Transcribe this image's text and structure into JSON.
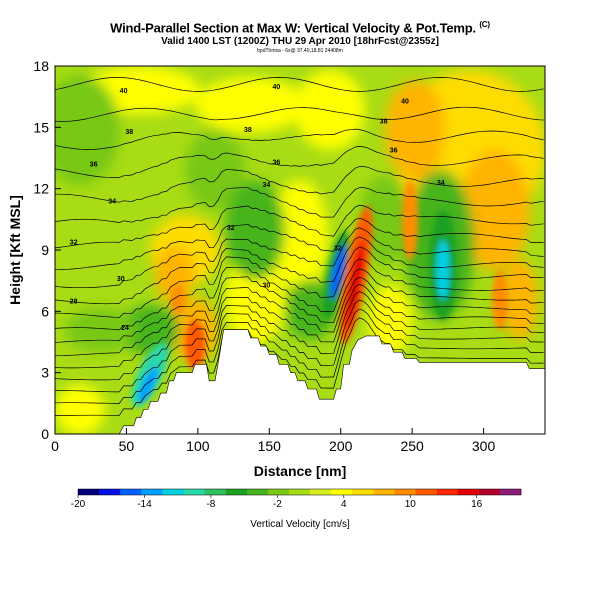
{
  "header": {
    "title": "Wind-Parallel Section at Max W: Vertical Velocity & Pot.Temp.",
    "title_mark": "(C)",
    "subtitle": "Valid 1400 LST (1200Z) THU 29 Apr 2010 [18hrFcst@2355z]",
    "credit": "bpdThmsa - 6x@ 37.40,18.81 24408m"
  },
  "chart_data": {
    "type": "heatmap",
    "xlabel": "Distance [nm]",
    "ylabel": "Height [Kft MSL]",
    "xlim": [
      0,
      343
    ],
    "ylim": [
      0,
      18
    ],
    "xticks": [
      0,
      50,
      100,
      150,
      200,
      250,
      300
    ],
    "yticks": [
      0,
      3,
      6,
      9,
      12,
      15,
      18
    ],
    "grid": false,
    "field": "Vertical Velocity [cm/s] (filled) with Potential Temperature contours",
    "terrain_profile": [
      [
        0,
        0
      ],
      [
        45,
        0
      ],
      [
        48,
        0.4
      ],
      [
        55,
        0.4
      ],
      [
        57,
        0.8
      ],
      [
        60,
        0.8
      ],
      [
        62,
        1.2
      ],
      [
        65,
        1.2
      ],
      [
        67,
        1.6
      ],
      [
        72,
        1.6
      ],
      [
        74,
        2
      ],
      [
        78,
        2
      ],
      [
        80,
        2.6
      ],
      [
        83,
        2.6
      ],
      [
        85,
        3
      ],
      [
        96,
        3
      ],
      [
        98,
        3.4
      ],
      [
        106,
        3.4
      ],
      [
        108,
        2.6
      ],
      [
        112,
        2.6
      ],
      [
        114,
        3.4
      ],
      [
        116,
        4.2
      ],
      [
        118,
        5.1
      ],
      [
        135,
        5.1
      ],
      [
        137,
        4.7
      ],
      [
        142,
        4.7
      ],
      [
        144,
        4.3
      ],
      [
        148,
        4.3
      ],
      [
        150,
        3.9
      ],
      [
        155,
        3.9
      ],
      [
        157,
        3.4
      ],
      [
        163,
        3.4
      ],
      [
        165,
        3
      ],
      [
        168,
        3
      ],
      [
        170,
        2.6
      ],
      [
        175,
        2.6
      ],
      [
        177,
        2.2
      ],
      [
        183,
        2.2
      ],
      [
        185,
        1.7
      ],
      [
        195,
        1.7
      ],
      [
        197,
        2.2
      ],
      [
        200,
        2.2
      ],
      [
        202,
        3.4
      ],
      [
        206,
        3.4
      ],
      [
        208,
        4.1
      ],
      [
        212,
        4.6
      ],
      [
        218,
        4.8
      ],
      [
        227,
        4.8
      ],
      [
        229,
        4.4
      ],
      [
        235,
        4.4
      ],
      [
        237,
        4
      ],
      [
        243,
        4
      ],
      [
        245,
        3.7
      ],
      [
        253,
        3.7
      ],
      [
        255,
        3.5
      ],
      [
        330,
        3.5
      ],
      [
        332,
        3.2
      ],
      [
        343,
        3.2
      ]
    ],
    "theta_contour_labels": [
      {
        "label": "40",
        "x": 48,
        "y": 16.8
      },
      {
        "label": "40",
        "x": 155,
        "y": 17
      },
      {
        "label": "40",
        "x": 245,
        "y": 16.3
      },
      {
        "label": "38",
        "x": 52,
        "y": 14.8
      },
      {
        "label": "38",
        "x": 135,
        "y": 14.9
      },
      {
        "label": "38",
        "x": 230,
        "y": 15.3
      },
      {
        "label": "36",
        "x": 27,
        "y": 13.2
      },
      {
        "label": "36",
        "x": 155,
        "y": 13.3
      },
      {
        "label": "36",
        "x": 237,
        "y": 13.9
      },
      {
        "label": "34",
        "x": 40,
        "y": 11.4
      },
      {
        "label": "34",
        "x": 148,
        "y": 12.2
      },
      {
        "label": "34",
        "x": 270,
        "y": 12.3
      },
      {
        "label": "32",
        "x": 13,
        "y": 9.4
      },
      {
        "label": "32",
        "x": 123,
        "y": 10.1
      },
      {
        "label": "32",
        "x": 198,
        "y": 9.1
      },
      {
        "label": "30",
        "x": 46,
        "y": 7.6
      },
      {
        "label": "30",
        "x": 148,
        "y": 7.3
      },
      {
        "label": "28",
        "x": 13,
        "y": 6.5
      },
      {
        "label": "24",
        "x": 49,
        "y": 5.2
      }
    ],
    "colorbar": {
      "label": "Vertical Velocity [cm/s]",
      "ticks": [
        -20,
        -14,
        -8,
        -2,
        4,
        10,
        16
      ],
      "range": [
        -20,
        20
      ],
      "colors": [
        "#00007a",
        "#0010e6",
        "#0060ff",
        "#00a0ff",
        "#00d0e0",
        "#2ad8a8",
        "#30c060",
        "#1ea020",
        "#46b41e",
        "#78c814",
        "#a8dc14",
        "#d8ee1e",
        "#ffff00",
        "#ffdc00",
        "#ffb400",
        "#ff8c00",
        "#ff5a00",
        "#ff2800",
        "#e40000",
        "#b40028",
        "#8c1e78"
      ]
    }
  }
}
